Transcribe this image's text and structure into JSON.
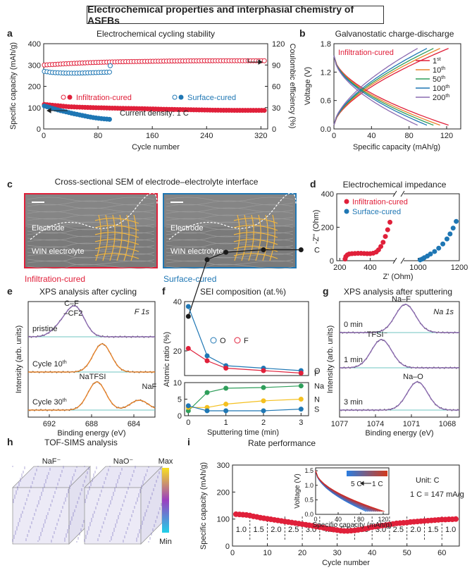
{
  "figure": {
    "title": "Electrochemical properties and interphasial chemistry of ASFBs",
    "panel_letters": [
      "a",
      "b",
      "c",
      "d",
      "e",
      "f",
      "g",
      "h",
      "i"
    ]
  },
  "colors": {
    "red": "#e0203a",
    "blue": "#1f77b4",
    "orange": "#e8832a",
    "green": "#2e9e5a",
    "purple": "#8c6bb1",
    "black": "#1a1a1a",
    "yellow": "#f4c020",
    "grid_yellow": "#f2b640"
  },
  "chart_data": [
    {
      "panel": "a",
      "type": "scatter",
      "title": "Electrochemical cycling stability",
      "xlabel": "Cycle number",
      "ylabel": "Specific capacity (mAh/g)",
      "ylabel_right": "Coulombic efficiency (%)",
      "xlim": [
        0,
        330
      ],
      "xticks": [
        "0",
        "80",
        "160",
        "240",
        "320"
      ],
      "ylim": [
        0,
        400
      ],
      "yticks": [
        "0",
        "100",
        "200",
        "300",
        "400"
      ],
      "ylim_right": [
        0,
        120
      ],
      "yticks_right": [
        "0",
        "30",
        "60",
        "90",
        "120"
      ],
      "legend": {
        "infiltration": "Infiltration-cured",
        "surface": "Surface-cured"
      },
      "annotation": "Current density: 1 C",
      "series": [
        {
          "name": "Infiltration-cured",
          "kind": "capacity",
          "color": "red",
          "x_start": 1,
          "x_end": 325,
          "step": 4,
          "y": [
            115,
            104,
            100,
            97,
            95,
            92,
            90,
            88,
            87,
            87
          ]
        },
        {
          "name": "Infiltration-cured",
          "kind": "ce",
          "color": "red",
          "x_start": 1,
          "x_end": 325,
          "step": 4,
          "y": [
            90,
            92,
            93.5,
            94.5,
            95,
            95.5,
            95.8,
            96,
            96,
            96
          ]
        },
        {
          "name": "Surface-cured",
          "kind": "capacity",
          "color": "blue",
          "x_start": 1,
          "x_end": 100,
          "step": 4,
          "y": [
            108,
            98,
            88,
            80,
            72,
            65,
            58,
            52,
            48,
            45
          ]
        },
        {
          "name": "Surface-cured",
          "kind": "ce",
          "color": "blue",
          "x_start": 1,
          "x_end": 100,
          "step": 4,
          "y": [
            81,
            79.5,
            79,
            78.6,
            78.5,
            78.6,
            79,
            79.3,
            79.6,
            80
          ]
        }
      ]
    },
    {
      "panel": "b",
      "type": "line",
      "title": "Galvanostatic charge-discharge",
      "xlabel": "Specific capacity (mAh/g)",
      "ylabel": "Voltage (V)",
      "xlim": [
        0,
        135
      ],
      "xticks": [
        "0",
        "40",
        "80",
        "120"
      ],
      "ylim": [
        0,
        1.8
      ],
      "yticks": [
        "0.0",
        "0.6",
        "1.2",
        "1.8"
      ],
      "label": "Infiltration-cured",
      "series": [
        {
          "name": "1",
          "sup": "st",
          "color": "red",
          "qmax": 122
        },
        {
          "name": "10",
          "sup": "th",
          "color": "orange",
          "qmax": 113
        },
        {
          "name": "50",
          "sup": "th",
          "color": "green",
          "qmax": 106
        },
        {
          "name": "100",
          "sup": "th",
          "color": "blue",
          "qmax": 99
        },
        {
          "name": "200",
          "sup": "th",
          "color": "purple",
          "qmax": 89
        }
      ]
    },
    {
      "panel": "d",
      "type": "scatter",
      "title": "Electrochemical impedance",
      "xlabel": "Z' (Ohm)",
      "ylabel": "-Z'' (Ohm)",
      "xticks": [
        "200",
        "400",
        "1000",
        "1200"
      ],
      "ylim": [
        0,
        400
      ],
      "yticks": [
        "0",
        "200",
        "400"
      ],
      "series": [
        {
          "name": "Infiltration-cured",
          "color": "red",
          "x": [
            235,
            240,
            250,
            262,
            280,
            300,
            320,
            340,
            360,
            380,
            400,
            420,
            440,
            455,
            470,
            485,
            500,
            515,
            530
          ],
          "y": [
            10,
            25,
            35,
            40,
            42,
            43,
            44,
            44,
            43,
            42,
            42,
            45,
            52,
            65,
            85,
            110,
            145,
            185,
            230
          ]
        },
        {
          "name": "Surface-cured",
          "color": "blue",
          "x": [
            1010,
            1020,
            1030,
            1045,
            1060,
            1080,
            1100,
            1120,
            1140,
            1155,
            1170,
            1185
          ],
          "y": [
            5,
            10,
            18,
            28,
            40,
            55,
            75,
            100,
            130,
            160,
            195,
            235
          ]
        }
      ]
    },
    {
      "panel": "e",
      "type": "line",
      "title": "XPS analysis after cycling",
      "xlabel": "Binding energy (eV)",
      "ylabel": "Intensity (arb. units)",
      "xlim": [
        694,
        682
      ],
      "xticks": [
        "692",
        "688",
        "684"
      ],
      "element_label": "F 1s",
      "spectra": [
        {
          "name": "pristine",
          "peaks": [
            {
              "label": "C–F",
              "center": 689.5
            },
            {
              "label": "–CF2",
              "center": 690.9
            }
          ]
        },
        {
          "name": "Cycle 10",
          "sup": "th",
          "peaks": [
            {
              "label": "",
              "center": 687
            }
          ]
        },
        {
          "name": "Cycle 30",
          "sup": "th",
          "peaks": [
            {
              "label": "NaTFSI",
              "center": 687.5
            },
            {
              "label": "NaF",
              "center": 683.5
            }
          ]
        }
      ]
    },
    {
      "panel": "f",
      "type": "line",
      "title": "SEI composition (at.%)",
      "xlabel": "Sputtering time (min)",
      "ylabel": "Atomic ratio (%)",
      "x": [
        0,
        0.5,
        1,
        2,
        3
      ],
      "xticks": [
        "0",
        "1",
        "2",
        "3"
      ],
      "ylim_upper": [
        10,
        40
      ],
      "yticks_upper": [
        "20",
        "40"
      ],
      "ylim_lower": [
        0,
        10
      ],
      "yticks_lower": [
        "0",
        "5",
        "10"
      ],
      "series": [
        {
          "name": "C",
          "color": "black",
          "values": [
            34,
            57,
            60,
            61,
            61
          ],
          "axis": "upper"
        },
        {
          "name": "O",
          "color": "blue",
          "values": [
            38,
            18,
            14,
            13,
            12
          ],
          "axis": "upper"
        },
        {
          "name": "F",
          "color": "red",
          "values": [
            21,
            16,
            13,
            12,
            11
          ],
          "axis": "upper"
        },
        {
          "name": "Na",
          "color": "green",
          "values": [
            1.5,
            7,
            8.3,
            8.5,
            9
          ],
          "axis": "lower"
        },
        {
          "name": "N",
          "color": "yellow",
          "values": [
            2.5,
            2.5,
            3.5,
            4.5,
            5
          ],
          "axis": "lower"
        },
        {
          "name": "S",
          "color": "blue",
          "values": [
            3,
            1.5,
            1.5,
            1.5,
            2
          ],
          "axis": "lower"
        }
      ]
    },
    {
      "panel": "g",
      "type": "line",
      "title": "XPS analysis after sputtering",
      "xlabel": "Binding energy (eV)",
      "ylabel": "Intensity (arb. units)",
      "xlim": [
        1077,
        1067
      ],
      "xticks": [
        "1077",
        "1074",
        "1071",
        "1068"
      ],
      "element_label": "Na 1s",
      "spectra": [
        {
          "name": "0 min",
          "peaks": [
            {
              "label": "Na–F",
              "center": 1071.5
            }
          ]
        },
        {
          "name": "1 min",
          "peaks": [
            {
              "label": "TFSI⁻",
              "center": 1073.5
            }
          ]
        },
        {
          "name": "3 min",
          "peaks": [
            {
              "label": "Na–O",
              "center": 1070.5
            }
          ]
        }
      ]
    },
    {
      "panel": "i",
      "type": "scatter",
      "title": "Rate performance",
      "xlabel": "Cycle number",
      "ylabel": "Specific capacity (mAh/g)",
      "xlim": [
        0,
        65
      ],
      "xticks": [
        "0",
        "10",
        "20",
        "30",
        "40",
        "50",
        "60"
      ],
      "ylim": [
        0,
        300
      ],
      "yticks": [
        "0",
        "100",
        "200",
        "300"
      ],
      "unit_note": "Unit: C",
      "conversion_note": "1 C = 147 mA/g",
      "rates": [
        "1.0",
        "1.5",
        "2.0",
        "2.5",
        "3.0",
        "4.0",
        "5.0",
        "4.0",
        "3.0",
        "2.5",
        "2.0",
        "1.5",
        "1.0"
      ],
      "values": [
        118,
        117,
        116,
        115,
        113,
        110,
        108,
        105,
        103,
        101,
        99,
        97,
        95,
        93,
        91,
        89,
        87,
        85,
        83,
        81,
        79,
        77,
        75,
        72,
        70,
        68,
        65,
        63,
        61,
        59,
        57,
        56,
        56,
        57,
        58,
        60,
        62,
        64,
        67,
        70,
        72,
        74,
        76,
        78,
        80,
        82,
        84,
        85,
        86,
        87,
        89,
        90,
        91,
        92,
        93,
        94,
        95,
        96,
        97,
        98,
        98,
        99,
        99,
        100
      ],
      "inset": {
        "xlabel": "Specific capacity (mAh/g)",
        "ylabel": "Voltage (V)",
        "xticks": [
          "0",
          "40",
          "80",
          "120"
        ],
        "yticks": [
          "0.0",
          "0.5",
          "1.0",
          "1.5"
        ],
        "arrow_label_left": "5 C",
        "arrow_label_right": "1 C"
      }
    }
  ],
  "panel_c": {
    "title": "Cross-sectional SEM of electrode–electrolyte interface",
    "left": {
      "electrode": "Electrode",
      "electrolyte": "WIN electrolyte",
      "caption": "Infiltration-cured"
    },
    "right": {
      "electrode": "Electrode",
      "electrolyte": "WIN electrolyte",
      "caption": "Surface-cured"
    }
  },
  "panel_h": {
    "title": "TOF-SIMS analysis",
    "cubes": [
      "NaF⁻",
      "NaO⁻"
    ],
    "colorbar": {
      "max": "Max",
      "min": "Min"
    }
  }
}
